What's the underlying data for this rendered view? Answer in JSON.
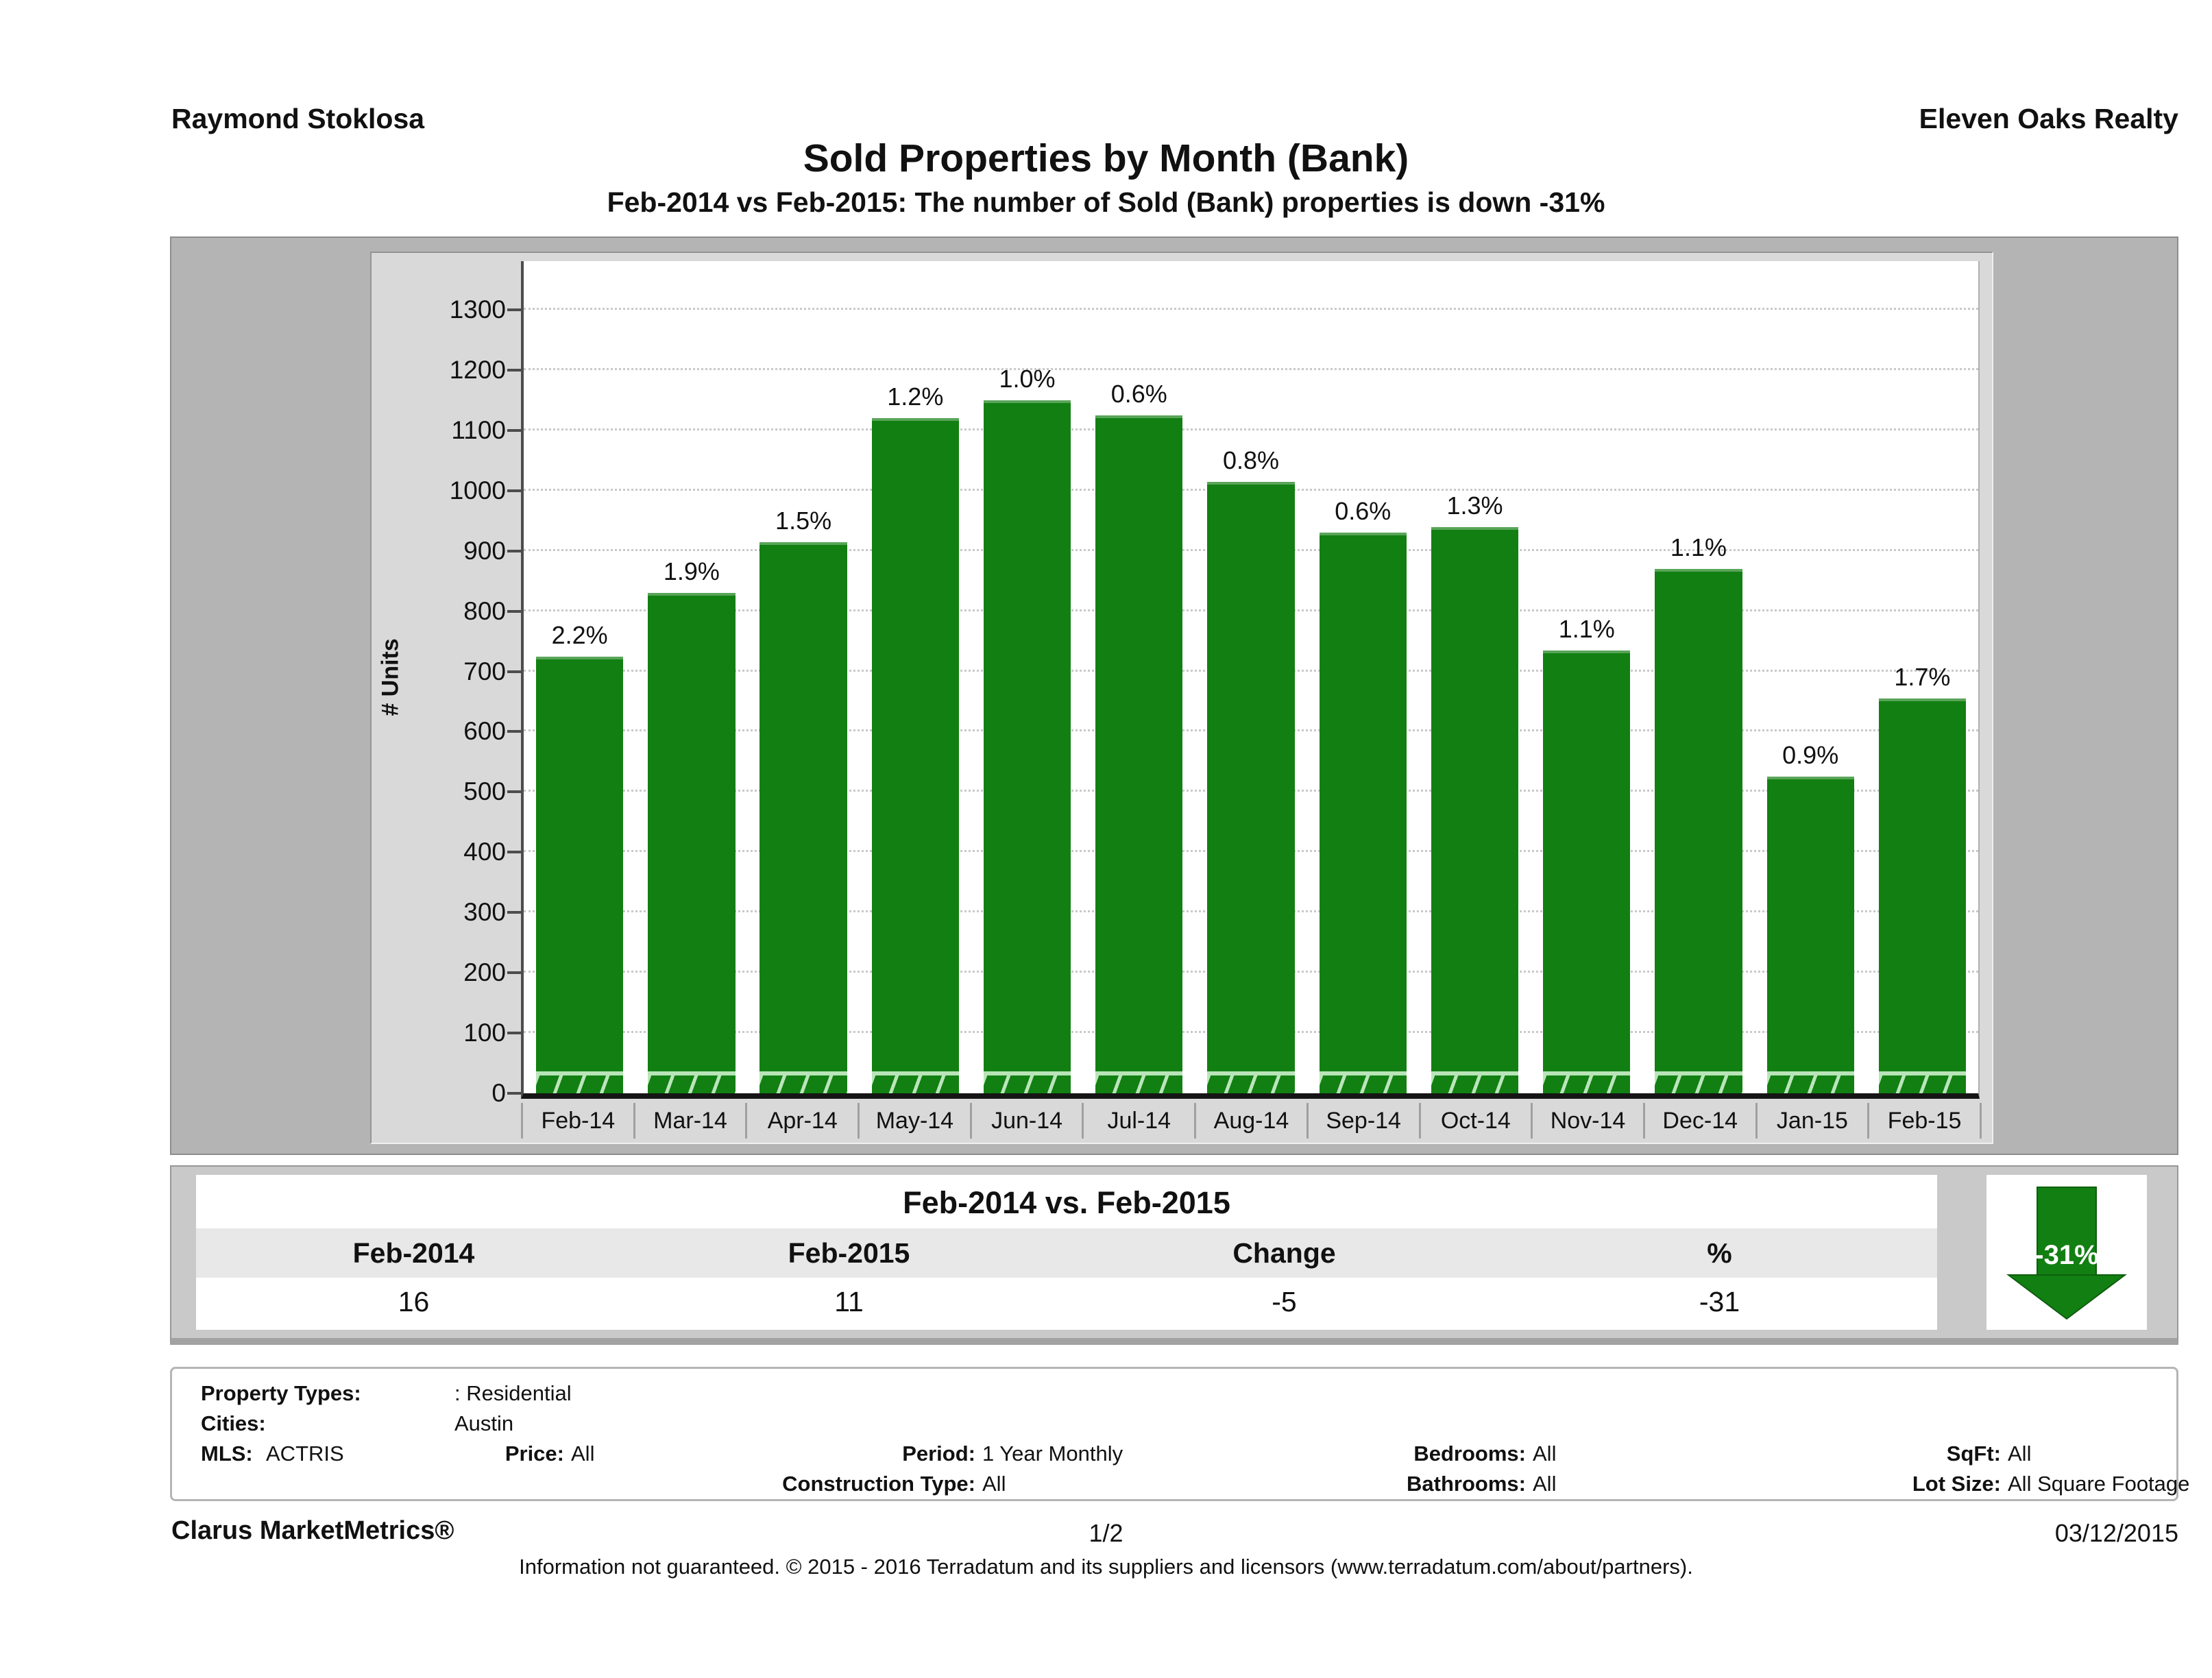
{
  "header": {
    "agent": "Raymond Stoklosa",
    "brokerage": "Eleven Oaks Realty"
  },
  "title": "Sold Properties by Month (Bank)",
  "subtitle": "Feb-2014 vs Feb-2015: The number of Sold (Bank)  properties is down -31%",
  "chart_data": {
    "type": "bar",
    "title": "Sold Properties by Month (Bank)",
    "xlabel": "",
    "ylabel": "# Units",
    "ylim": [
      0,
      1381
    ],
    "ytick_step": 100,
    "ytick_max": 1300,
    "grid": "horizontal-dotted",
    "legend": "none",
    "bar_color": "#127f12",
    "categories": [
      "Feb-14",
      "Mar-14",
      "Apr-14",
      "May-14",
      "Jun-14",
      "Jul-14",
      "Aug-14",
      "Sep-14",
      "Oct-14",
      "Nov-14",
      "Dec-14",
      "Jan-15",
      "Feb-15"
    ],
    "values": [
      725,
      830,
      915,
      1120,
      1150,
      1125,
      1015,
      930,
      940,
      735,
      870,
      525,
      655
    ],
    "bar_labels": [
      "2.2%",
      "1.9%",
      "1.5%",
      "1.2%",
      "1.0%",
      "0.6%",
      "0.8%",
      "0.6%",
      "1.3%",
      "1.1%",
      "1.1%",
      "0.9%",
      "1.7%"
    ]
  },
  "comparison": {
    "title": "Feb-2014 vs. Feb-2015",
    "columns": [
      "Feb-2014",
      "Feb-2015",
      "Change",
      "%"
    ],
    "values": [
      "16",
      "11",
      "-5",
      "-31"
    ],
    "arrow_label": "-31%",
    "arrow_color": "#127f12",
    "arrow_direction": "down"
  },
  "filters": {
    "property_types_label": "Property Types:",
    "property_types_value": ": Residential",
    "cities_label": "Cities:",
    "cities_value": "Austin",
    "mls_label": "MLS:",
    "mls_value": "ACTRIS",
    "price_label": "Price:",
    "price_value": "All",
    "period_label": "Period:",
    "period_value": "1 Year Monthly",
    "bedrooms_label": "Bedrooms:",
    "bedrooms_value": "All",
    "sqft_label": "SqFt:",
    "sqft_value": "All",
    "construction_label": "Construction Type:",
    "construction_value": "All",
    "bathrooms_label": "Bathrooms:",
    "bathrooms_value": "All",
    "lot_label": "Lot Size:",
    "lot_value": "All Square Footage"
  },
  "footer": {
    "brand": "Clarus MarketMetrics®",
    "page": "1/2",
    "date": "03/12/2015",
    "disclaimer": "Information not guaranteed. © 2015 - 2016 Terradatum and its suppliers and licensors (www.terradatum.com/about/partners)."
  }
}
